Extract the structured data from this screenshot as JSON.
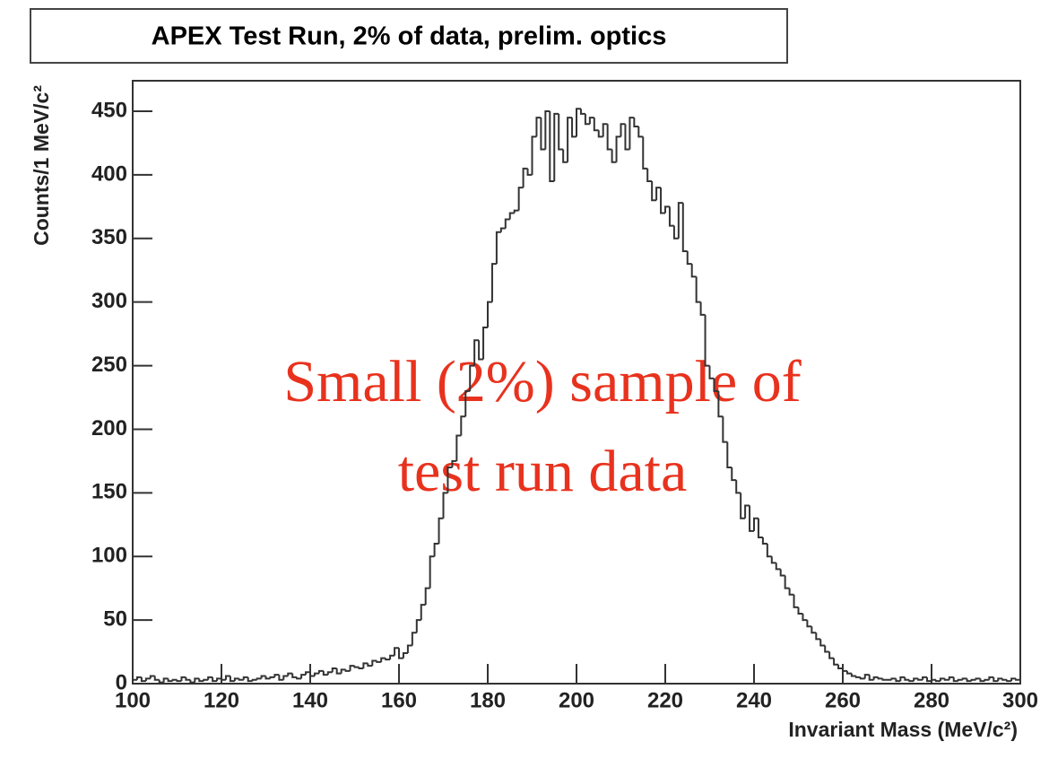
{
  "chart_data": {
    "type": "histogram",
    "title": "APEX Test Run, 2% of data, prelim. optics",
    "x_label": "Invariant Mass (MeV/c²)",
    "y_label": "Counts/1 MeV/c²",
    "annotation": [
      "Small (2%) sample of",
      "test run data"
    ],
    "color": "#333333",
    "bins": [
      100,
      101,
      102,
      103,
      104,
      105,
      106,
      107,
      108,
      109,
      110,
      111,
      112,
      113,
      114,
      115,
      116,
      117,
      118,
      119,
      120,
      121,
      122,
      123,
      124,
      125,
      126,
      127,
      128,
      129,
      130,
      131,
      132,
      133,
      134,
      135,
      136,
      137,
      138,
      139,
      140,
      141,
      142,
      143,
      144,
      145,
      146,
      147,
      148,
      149,
      150,
      151,
      152,
      153,
      154,
      155,
      156,
      157,
      158,
      159,
      160,
      161,
      162,
      163,
      164,
      165,
      166,
      167,
      168,
      169,
      170,
      171,
      172,
      173,
      174,
      175,
      176,
      177,
      178,
      179,
      180,
      181,
      182,
      183,
      184,
      185,
      186,
      187,
      188,
      189,
      190,
      191,
      192,
      193,
      194,
      195,
      196,
      197,
      198,
      199,
      200,
      201,
      202,
      203,
      204,
      205,
      206,
      207,
      208,
      209,
      210,
      211,
      212,
      213,
      214,
      215,
      216,
      217,
      218,
      219,
      220,
      221,
      222,
      223,
      224,
      225,
      226,
      227,
      228,
      229,
      230,
      231,
      232,
      233,
      234,
      235,
      236,
      237,
      238,
      239,
      240,
      241,
      242,
      243,
      244,
      245,
      246,
      247,
      248,
      249,
      250,
      251,
      252,
      253,
      254,
      255,
      256,
      257,
      258,
      259,
      260,
      261,
      262,
      263,
      264,
      265,
      266,
      267,
      268,
      269,
      270,
      271,
      272,
      273,
      274,
      275,
      276,
      277,
      278,
      279,
      280,
      281,
      282,
      283,
      284,
      285,
      286,
      287,
      288,
      289,
      290,
      291,
      292,
      293,
      294,
      295,
      296,
      297,
      298,
      299,
      300
    ],
    "values": [
      3,
      5,
      2,
      4,
      6,
      3,
      1,
      4,
      2,
      3,
      2,
      5,
      3,
      1,
      4,
      2,
      3,
      5,
      2,
      4,
      3,
      6,
      2,
      4,
      3,
      5,
      2,
      3,
      4,
      6,
      4,
      5,
      7,
      3,
      6,
      8,
      5,
      4,
      7,
      9,
      6,
      8,
      10,
      7,
      9,
      12,
      8,
      11,
      10,
      14,
      13,
      12,
      16,
      14,
      18,
      17,
      20,
      19,
      22,
      28,
      20,
      24,
      30,
      40,
      50,
      62,
      75,
      100,
      110,
      130,
      150,
      170,
      175,
      195,
      210,
      230,
      250,
      270,
      255,
      280,
      300,
      330,
      355,
      358,
      365,
      370,
      372,
      390,
      405,
      400,
      430,
      445,
      420,
      450,
      395,
      448,
      420,
      410,
      445,
      430,
      452,
      448,
      440,
      445,
      435,
      430,
      440,
      420,
      410,
      430,
      440,
      420,
      445,
      438,
      430,
      405,
      395,
      380,
      390,
      370,
      375,
      360,
      350,
      378,
      340,
      330,
      320,
      300,
      290,
      250,
      240,
      230,
      210,
      190,
      170,
      160,
      150,
      130,
      140,
      120,
      130,
      115,
      110,
      100,
      95,
      90,
      85,
      75,
      70,
      60,
      55,
      50,
      45,
      40,
      35,
      30,
      25,
      20,
      15,
      12,
      10,
      8,
      6,
      5,
      4,
      7,
      3,
      5,
      4,
      3,
      3,
      4,
      2,
      5,
      3,
      2,
      4,
      3,
      5,
      2,
      3,
      2,
      4,
      3,
      5,
      2,
      3,
      4,
      2,
      3,
      4,
      2,
      3,
      5,
      2,
      4,
      3,
      2,
      4,
      3
    ],
    "xlim": [
      100,
      300
    ],
    "xticks": [
      100,
      120,
      140,
      160,
      180,
      200,
      220,
      240,
      260,
      280,
      300
    ],
    "ylim": [
      0,
      474
    ],
    "yticks": [
      0,
      50,
      100,
      150,
      200,
      250,
      300,
      350,
      400,
      450
    ]
  }
}
